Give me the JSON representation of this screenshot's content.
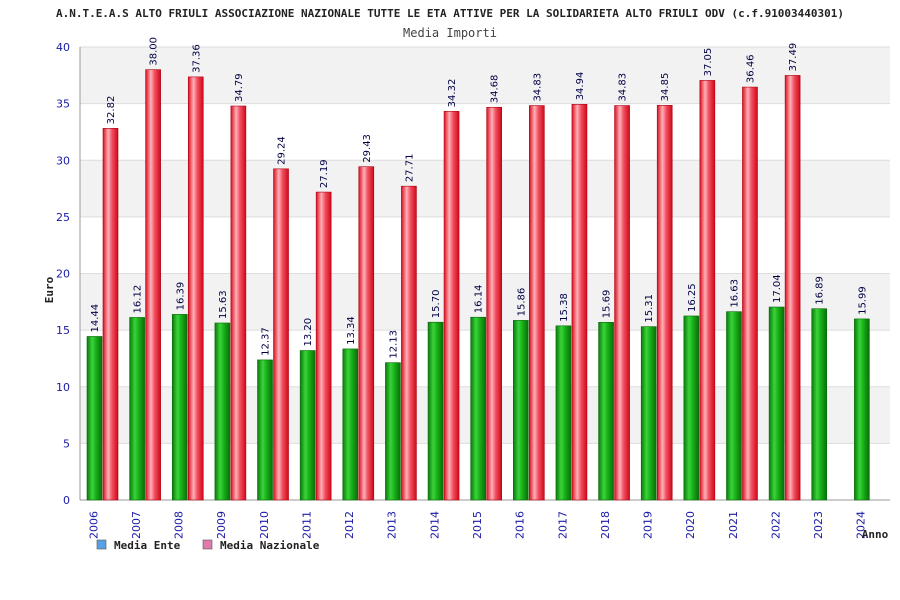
{
  "chart_data": {
    "type": "bar",
    "title": "A.N.T.E.A.S ALTO FRIULI ASSOCIAZIONE NAZIONALE TUTTE LE ETA ATTIVE PER LA SOLIDARIETA ALTO FRIULI ODV (c.f.91003440301)",
    "subtitle": "Media Importi",
    "xlabel": "Anno",
    "ylabel": "Euro",
    "ylim": [
      0,
      40
    ],
    "yticks": [
      0,
      5,
      10,
      15,
      20,
      25,
      30,
      35,
      40
    ],
    "grid": true,
    "legend_position": "bottom-left",
    "categories": [
      "2006",
      "2007",
      "2008",
      "2009",
      "2010",
      "2011",
      "2012",
      "2013",
      "2014",
      "2015",
      "2016",
      "2017",
      "2018",
      "2019",
      "2020",
      "2021",
      "2022",
      "2023",
      "2024"
    ],
    "series": [
      {
        "name": "Media Ente",
        "color": "#22bb22",
        "legend_color": "#5aa0e6",
        "values": [
          14.44,
          16.12,
          16.39,
          15.63,
          12.37,
          13.2,
          13.34,
          12.13,
          15.7,
          16.14,
          15.86,
          15.38,
          15.69,
          15.31,
          16.25,
          16.63,
          17.04,
          16.89,
          15.99
        ],
        "labels": [
          "14.44",
          "16.12",
          "16.39",
          "15.63",
          "12.37",
          "13.20",
          "13.34",
          "12.13",
          "15.70",
          "16.14",
          "15.86",
          "15.38",
          "15.69",
          "15.31",
          "16.25",
          "16.63",
          "17.04",
          "16.89",
          "15.99"
        ]
      },
      {
        "name": "Media Nazionale",
        "color": "#ee2a35",
        "legend_color": "#e07aa8",
        "values": [
          32.82,
          38.0,
          37.36,
          34.79,
          29.24,
          27.19,
          29.43,
          27.71,
          34.32,
          34.68,
          34.83,
          34.94,
          34.83,
          34.85,
          37.05,
          36.46,
          37.49,
          null,
          null
        ],
        "labels": [
          "32.82",
          "38.00",
          "37.36",
          "34.79",
          "29.24",
          "27.19",
          "29.43",
          "27.71",
          "34.32",
          "34.68",
          "34.83",
          "34.94",
          "34.83",
          "34.85",
          "37.05",
          "36.46",
          "37.49",
          null,
          null
        ]
      }
    ]
  }
}
